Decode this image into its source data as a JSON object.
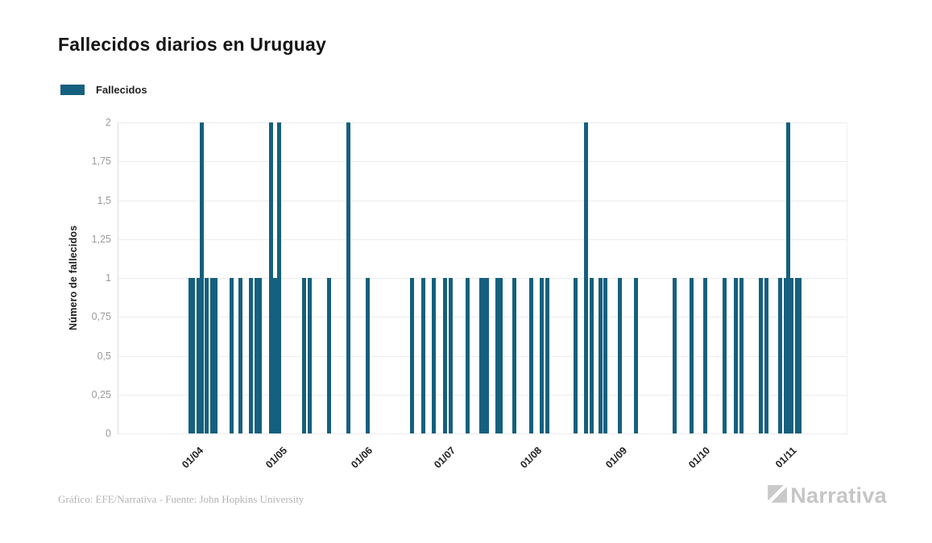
{
  "title": "Fallecidos diarios en Uruguay",
  "legend": {
    "label": "Fallecidos",
    "color": "#15607e"
  },
  "footer": {
    "credit": "Gráfico: EFE/Narrativa - Fuente: John Hopkins University",
    "brand": "Narrativa"
  },
  "chart_data": {
    "type": "bar",
    "title": "Fallecidos diarios en Uruguay",
    "xlabel": "",
    "ylabel": "Número de fallecidos",
    "series_name": "Fallecidos",
    "bar_color": "#15607e",
    "grid": "horizontal",
    "legend_position": "top-left",
    "ylim": [
      0,
      2
    ],
    "yticks": {
      "values": [
        0,
        0.25,
        0.5,
        0.75,
        1,
        1.25,
        1.5,
        1.75,
        2
      ],
      "labels": [
        "0",
        "0,25",
        "0,5",
        "0,75",
        "1",
        "1,25",
        "1,5",
        "1,75",
        "2"
      ]
    },
    "xticks": [
      "01/04",
      "01/05",
      "01/06",
      "01/07",
      "01/08",
      "01/09",
      "01/10",
      "01/11"
    ],
    "axis_start": "03/03",
    "axis_end": "21/11",
    "points": [
      {
        "date": "29/03",
        "value": 1
      },
      {
        "date": "30/03",
        "value": 1
      },
      {
        "date": "01/04",
        "value": 1
      },
      {
        "date": "02/04",
        "value": 2
      },
      {
        "date": "04/04",
        "value": 1
      },
      {
        "date": "06/04",
        "value": 1
      },
      {
        "date": "07/04",
        "value": 1
      },
      {
        "date": "13/04",
        "value": 1
      },
      {
        "date": "16/04",
        "value": 1
      },
      {
        "date": "20/04",
        "value": 1
      },
      {
        "date": "22/04",
        "value": 1
      },
      {
        "date": "23/04",
        "value": 1
      },
      {
        "date": "27/04",
        "value": 2
      },
      {
        "date": "28/04",
        "value": 1
      },
      {
        "date": "29/04",
        "value": 1
      },
      {
        "date": "30/04",
        "value": 2
      },
      {
        "date": "09/05",
        "value": 1
      },
      {
        "date": "11/05",
        "value": 1
      },
      {
        "date": "18/05",
        "value": 1
      },
      {
        "date": "25/05",
        "value": 2
      },
      {
        "date": "01/06",
        "value": 1
      },
      {
        "date": "17/06",
        "value": 1
      },
      {
        "date": "21/06",
        "value": 1
      },
      {
        "date": "25/06",
        "value": 1
      },
      {
        "date": "29/06",
        "value": 1
      },
      {
        "date": "01/07",
        "value": 1
      },
      {
        "date": "07/07",
        "value": 1
      },
      {
        "date": "12/07",
        "value": 1
      },
      {
        "date": "13/07",
        "value": 1
      },
      {
        "date": "14/07",
        "value": 1
      },
      {
        "date": "18/07",
        "value": 1
      },
      {
        "date": "19/07",
        "value": 1
      },
      {
        "date": "24/07",
        "value": 1
      },
      {
        "date": "30/07",
        "value": 1
      },
      {
        "date": "03/08",
        "value": 1
      },
      {
        "date": "05/08",
        "value": 1
      },
      {
        "date": "15/08",
        "value": 1
      },
      {
        "date": "19/08",
        "value": 2
      },
      {
        "date": "21/08",
        "value": 1
      },
      {
        "date": "24/08",
        "value": 1
      },
      {
        "date": "26/08",
        "value": 1
      },
      {
        "date": "31/08",
        "value": 1
      },
      {
        "date": "06/09",
        "value": 1
      },
      {
        "date": "20/09",
        "value": 1
      },
      {
        "date": "26/09",
        "value": 1
      },
      {
        "date": "01/10",
        "value": 1
      },
      {
        "date": "08/10",
        "value": 1
      },
      {
        "date": "12/10",
        "value": 1
      },
      {
        "date": "14/10",
        "value": 1
      },
      {
        "date": "21/10",
        "value": 1
      },
      {
        "date": "23/10",
        "value": 1
      },
      {
        "date": "28/10",
        "value": 1
      },
      {
        "date": "30/10",
        "value": 1
      },
      {
        "date": "31/10",
        "value": 2
      },
      {
        "date": "01/11",
        "value": 1
      },
      {
        "date": "03/11",
        "value": 1
      },
      {
        "date": "04/11",
        "value": 1
      }
    ]
  }
}
